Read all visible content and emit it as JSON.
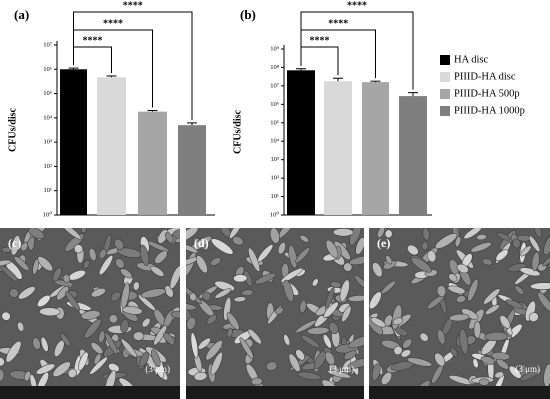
{
  "chart_data": [
    {
      "type": "bar",
      "title": "(a)",
      "y_label": "CFUs/disc",
      "log_y": true,
      "values": [
        1000000,
        470000,
        18000,
        5000
      ],
      "errors": [
        120000,
        60000,
        2000,
        1200
      ],
      "colors": [
        "#000000",
        "#d9d9d9",
        "#a6a6a6",
        "#7f7f7f"
      ],
      "ylim": [
        1,
        10000000
      ],
      "yticks": [
        {
          "value": 1,
          "label": "10⁰"
        },
        {
          "value": 10,
          "label": "10¹"
        },
        {
          "value": 100,
          "label": "10²"
        },
        {
          "value": 1000,
          "label": "10³"
        },
        {
          "value": 10000,
          "label": "10⁴"
        },
        {
          "value": 100000,
          "label": "10⁵"
        },
        {
          "value": 1000000,
          "label": "10⁶"
        },
        {
          "value": 10000000,
          "label": "10⁷"
        }
      ],
      "significance": [
        "****",
        "****",
        "****"
      ]
    },
    {
      "type": "bar",
      "title": "(b)",
      "y_label": "CFUs/disc",
      "log_y": true,
      "categories": [
        "HA disc",
        "PIIID-HA disc",
        "PIIID-HA 500p",
        "PIIID-HA 1000p"
      ],
      "legend": "right",
      "values": [
        70000000,
        18000000,
        16000000,
        2800000
      ],
      "errors": [
        15000000,
        8000000,
        2000000,
        1500000
      ],
      "colors": [
        "#000000",
        "#d9d9d9",
        "#a6a6a6",
        "#7f7f7f"
      ],
      "ylim": [
        1,
        1000000000
      ],
      "yticks": [
        {
          "value": 1,
          "label": "10⁰"
        },
        {
          "value": 10,
          "label": "10¹"
        },
        {
          "value": 100,
          "label": "10²"
        },
        {
          "value": 1000,
          "label": "10³"
        },
        {
          "value": 10000,
          "label": "10⁴"
        },
        {
          "value": 100000,
          "label": "10⁵"
        },
        {
          "value": 1000000,
          "label": "10⁶"
        },
        {
          "value": 10000000,
          "label": "10⁷"
        },
        {
          "value": 100000000,
          "label": "10⁸"
        },
        {
          "value": 1000000000,
          "label": "10⁹"
        }
      ],
      "significance": [
        "****",
        "****",
        "****"
      ]
    }
  ],
  "images": [
    {
      "label": "(c)",
      "scale": "(3 μm)"
    },
    {
      "label": "(d)",
      "scale": "(3 μm)"
    },
    {
      "label": "(e)",
      "scale": "(3 μm)"
    }
  ]
}
